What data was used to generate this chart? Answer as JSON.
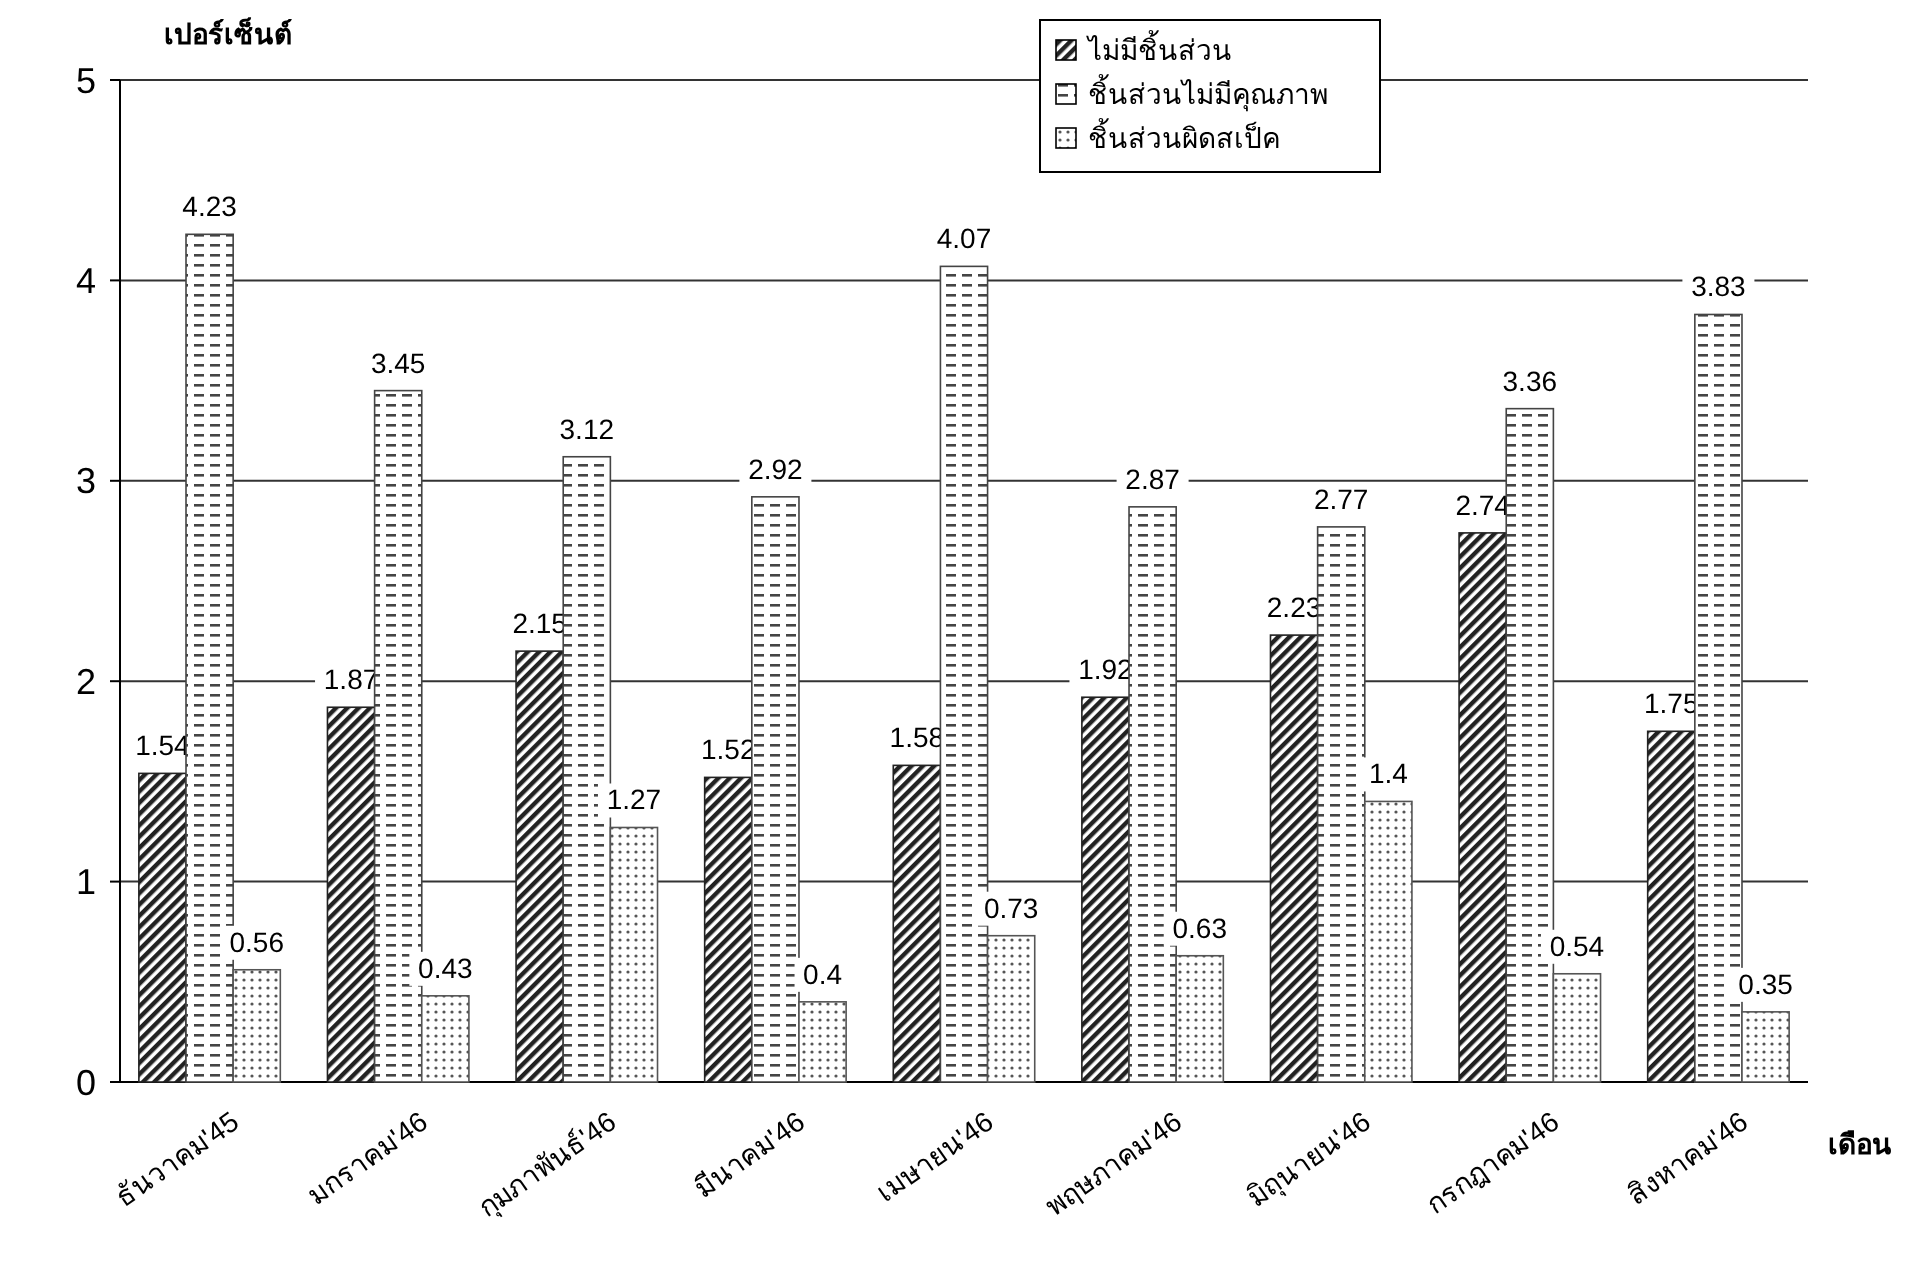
{
  "chart_data": {
    "type": "bar",
    "ylabel": "เปอร์เซ็นต์",
    "xlabel": "เดือน",
    "categories": [
      "ธันวาคม'45",
      "มกราคม'46",
      "กุมภาพันธ์'46",
      "มีนาคม'46",
      "เมษายน'46",
      "พฤษภาคม'46",
      "มิถุนายน'46",
      "กรกฎาคม'46",
      "สิงหาคม'46"
    ],
    "series": [
      {
        "name": "ไม่มีชิ้นส่วน",
        "color": "#222222",
        "values": [
          1.54,
          1.87,
          2.15,
          1.52,
          1.58,
          1.92,
          2.23,
          2.74,
          1.75
        ]
      },
      {
        "name": "ชิ้นส่วนไม่มีคุณภาพ",
        "color": "#444444",
        "values": [
          4.23,
          3.45,
          3.12,
          2.92,
          4.07,
          2.87,
          2.77,
          3.36,
          3.83
        ]
      },
      {
        "name": "ชิ้นส่วนผิดสเป็ค",
        "color": "#555555",
        "values": [
          0.56,
          0.43,
          1.27,
          0.4,
          0.73,
          0.63,
          1.4,
          0.54,
          0.35
        ]
      }
    ],
    "ylim": [
      0,
      5
    ],
    "yticks": [
      0,
      1,
      2,
      3,
      4,
      5
    ],
    "grid": "y",
    "legend": "top right",
    "data_labels": true
  }
}
